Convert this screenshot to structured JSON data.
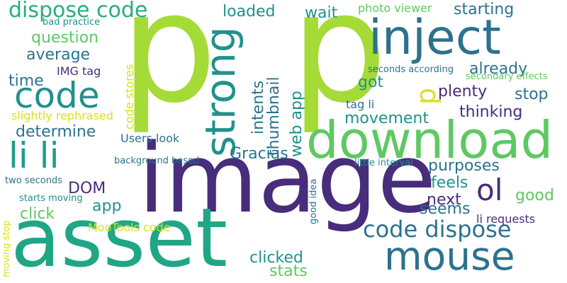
{
  "words": [
    {
      "text": "p",
      "color": "#a5db36",
      "orientation": "horizontal"
    },
    {
      "text": "p",
      "color": "#a5db36",
      "orientation": "horizontal"
    },
    {
      "text": "image",
      "color": "#472d7b",
      "orientation": "horizontal"
    },
    {
      "text": "asset",
      "color": "#21a685",
      "orientation": "horizontal"
    },
    {
      "text": "download",
      "color": "#5ec962",
      "orientation": "horizontal"
    },
    {
      "text": "inject",
      "color": "#2c728e",
      "orientation": "horizontal"
    },
    {
      "text": "mouse",
      "color": "#2c728e",
      "orientation": "horizontal"
    },
    {
      "text": "code",
      "color": "#21918c",
      "orientation": "horizontal"
    },
    {
      "text": "strong",
      "color": "#21918c",
      "orientation": "vertical"
    },
    {
      "text": "li li",
      "color": "#1f9e89",
      "orientation": "horizontal"
    },
    {
      "text": "dispose code",
      "color": "#28ae80",
      "orientation": "horizontal"
    },
    {
      "text": "code dispose",
      "color": "#2c728e",
      "orientation": "horizontal"
    },
    {
      "text": "ol",
      "color": "#472d7b",
      "orientation": "horizontal"
    },
    {
      "text": "p",
      "color": "#d8e219",
      "orientation": "vertical"
    },
    {
      "text": "starting",
      "color": "#2c728e",
      "orientation": "horizontal"
    },
    {
      "text": "loaded",
      "color": "#21918c",
      "orientation": "horizontal"
    },
    {
      "text": "wait",
      "color": "#21918c",
      "orientation": "horizontal"
    },
    {
      "text": "question",
      "color": "#5ec962",
      "orientation": "horizontal"
    },
    {
      "text": "average",
      "color": "#2c728e",
      "orientation": "horizontal"
    },
    {
      "text": "time",
      "color": "#2c728e",
      "orientation": "horizontal"
    },
    {
      "text": "IMG tag",
      "color": "#472d7b",
      "orientation": "horizontal"
    },
    {
      "text": "got",
      "color": "#21918c",
      "orientation": "horizontal"
    },
    {
      "text": "already",
      "color": "#2c728e",
      "orientation": "horizontal"
    },
    {
      "text": "plenty",
      "color": "#472d7b",
      "orientation": "horizontal"
    },
    {
      "text": "stop",
      "color": "#2c728e",
      "orientation": "horizontal"
    },
    {
      "text": "thinking",
      "color": "#472d7b",
      "orientation": "horizontal"
    },
    {
      "text": "determine",
      "color": "#2c728e",
      "orientation": "horizontal"
    },
    {
      "text": "movement",
      "color": "#21918c",
      "orientation": "horizontal"
    },
    {
      "text": "Gracias",
      "color": "#2c728e",
      "orientation": "horizontal"
    },
    {
      "text": "purposes",
      "color": "#2c728e",
      "orientation": "horizontal"
    },
    {
      "text": "feels",
      "color": "#21918c",
      "orientation": "horizontal"
    },
    {
      "text": "next",
      "color": "#472d7b",
      "orientation": "horizontal"
    },
    {
      "text": "good",
      "color": "#5ec962",
      "orientation": "horizontal"
    },
    {
      "text": "seems",
      "color": "#2c728e",
      "orientation": "horizontal"
    },
    {
      "text": "DOM",
      "color": "#472d7b",
      "orientation": "horizontal"
    },
    {
      "text": "app",
      "color": "#21918c",
      "orientation": "horizontal"
    },
    {
      "text": "click",
      "color": "#5ec962",
      "orientation": "horizontal"
    },
    {
      "text": "clicked",
      "color": "#21918c",
      "orientation": "horizontal"
    },
    {
      "text": "stats",
      "color": "#5ec962",
      "orientation": "horizontal"
    },
    {
      "text": "Users look",
      "color": "#2c728e",
      "orientation": "horizontal"
    },
    {
      "text": "tag li",
      "color": "#2c728e",
      "orientation": "horizontal"
    },
    {
      "text": "photo viewer",
      "color": "#5ec962",
      "orientation": "horizontal"
    },
    {
      "text": "seconds according",
      "color": "#2c728e",
      "orientation": "horizontal"
    },
    {
      "text": "secondary effects",
      "color": "#5ec962",
      "orientation": "horizontal"
    },
    {
      "text": "bad practice",
      "color": "#21918c",
      "orientation": "horizontal"
    },
    {
      "text": "slightly rephrased",
      "color": "#d8e219",
      "orientation": "horizontal"
    },
    {
      "text": "background based",
      "color": "#2c728e",
      "orientation": "horizontal"
    },
    {
      "text": "little interval",
      "color": "#21918c",
      "orientation": "horizontal"
    },
    {
      "text": "two seconds",
      "color": "#2c728e",
      "orientation": "horizontal"
    },
    {
      "text": "starts moving",
      "color": "#21918c",
      "orientation": "horizontal"
    },
    {
      "text": "MooTools code",
      "color": "#d8e219",
      "orientation": "horizontal"
    },
    {
      "text": "li requests",
      "color": "#472d7b",
      "orientation": "horizontal"
    },
    {
      "text": "code stores",
      "color": "#d8e219",
      "orientation": "vertical"
    },
    {
      "text": "thumbnail",
      "color": "#2c728e",
      "orientation": "vertical"
    },
    {
      "text": "intents",
      "color": "#2c728e",
      "orientation": "vertical"
    },
    {
      "text": "web app",
      "color": "#21918c",
      "orientation": "vertical"
    },
    {
      "text": "good idea",
      "color": "#2c728e",
      "orientation": "vertical"
    },
    {
      "text": "moving stop",
      "color": "#d8e219",
      "orientation": "vertical"
    }
  ]
}
